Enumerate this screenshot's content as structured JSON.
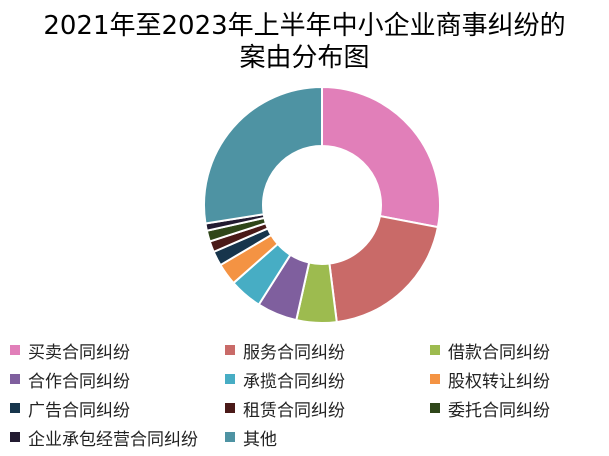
{
  "chart_data": {
    "type": "pie",
    "donut": true,
    "title_lines": [
      "2021年至2023年上半年中小企业商事纠纷的",
      "案由分布图"
    ],
    "legend_position": "bottom",
    "slices": [
      {
        "name": "买卖合同纠纷",
        "value": 28.0,
        "color": "#E17FB9"
      },
      {
        "name": "服务合同纠纷",
        "value": 20.0,
        "color": "#C96A68"
      },
      {
        "name": "借款合同纠纷",
        "value": 5.5,
        "color": "#9DBB4F"
      },
      {
        "name": "合作合同纠纷",
        "value": 5.5,
        "color": "#7F5F9E"
      },
      {
        "name": "承揽合同纠纷",
        "value": 4.5,
        "color": "#47ADC4"
      },
      {
        "name": "股权转让纠纷",
        "value": 3.0,
        "color": "#F49343"
      },
      {
        "name": "广告合同纠纷",
        "value": 2.0,
        "color": "#17354C"
      },
      {
        "name": "租赁合同纠纷",
        "value": 1.5,
        "color": "#4A1A18"
      },
      {
        "name": "委托合同纠纷",
        "value": 1.5,
        "color": "#2F4619"
      },
      {
        "name": "企业承包经营合同纠纷",
        "value": 1.0,
        "color": "#231B31"
      },
      {
        "name": "其他",
        "value": 27.5,
        "color": "#4E93A3"
      }
    ]
  }
}
